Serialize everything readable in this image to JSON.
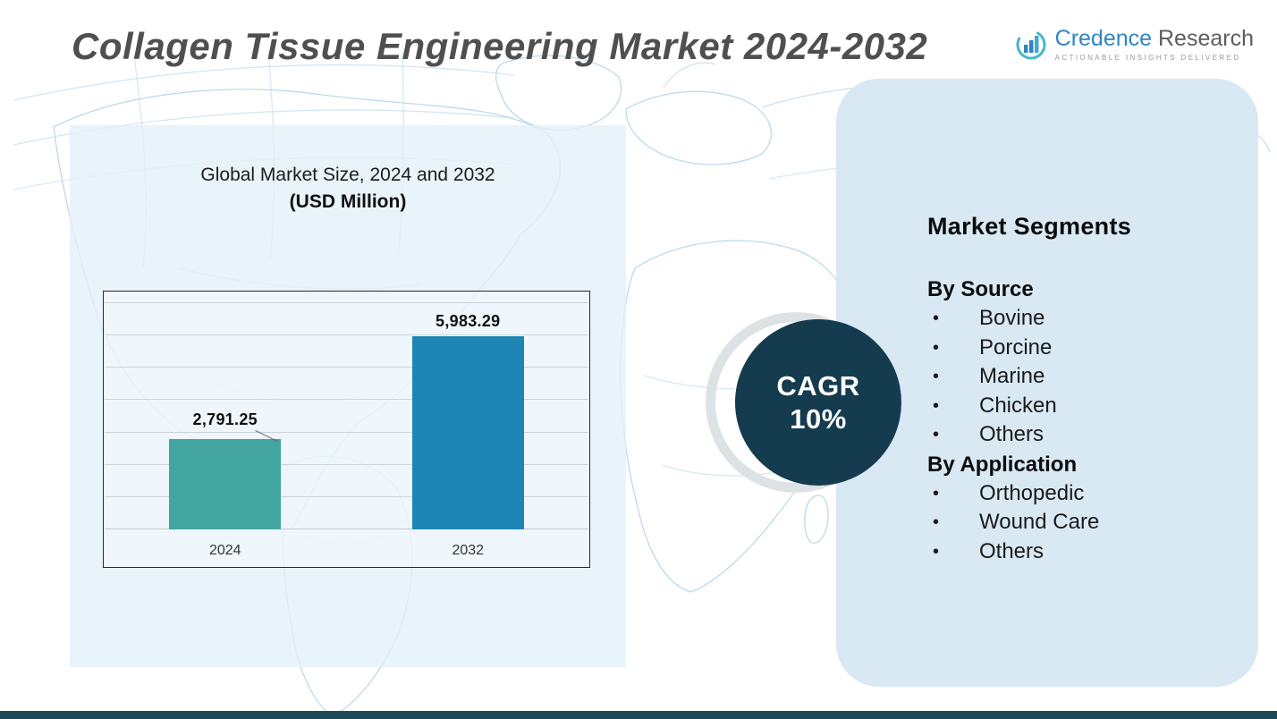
{
  "header": {
    "title": "Collagen Tissue Engineering Market 2024-2032",
    "logo": {
      "brand_primary": "Credence",
      "brand_secondary": "Research",
      "tagline": "ACTIONABLE INSIGHTS DELIVERED"
    }
  },
  "chart_panel": {
    "title": "Global Market Size, 2024 and 2032",
    "subtitle": "(USD Million)"
  },
  "chart_data": {
    "type": "bar",
    "title": "Global Market Size, 2024 and 2032",
    "unit": "USD Million",
    "categories": [
      "2024",
      "2032"
    ],
    "values": [
      2791.25,
      5983.29
    ],
    "value_labels": [
      "2,791.25",
      "5,983.29"
    ],
    "ylim": [
      0,
      7000
    ],
    "gridline_step": 1000,
    "grid": true,
    "legend_position": "none",
    "bar_colors": [
      "#42a5a0",
      "#1e86b5"
    ]
  },
  "cagr_badge": {
    "label": "CAGR",
    "value": "10%"
  },
  "segments_panel": {
    "title": "Market Segments",
    "groups": [
      {
        "heading": "By Source",
        "items": [
          "Bovine",
          "Porcine",
          "Marine",
          "Chicken",
          "Others"
        ]
      },
      {
        "heading": "By Application",
        "items": [
          "Orthopedic",
          "Wound Care",
          "Others"
        ]
      }
    ]
  },
  "colors": {
    "bar_2024": "#42a5a0",
    "bar_2032": "#1e86b5",
    "cagr_circle": "#143c4e",
    "left_panel_bg": "#e3f0f8",
    "right_panel_bg": "#d8e9f4",
    "footer_strip": "#1d4b59",
    "title_text": "#4f4f4f",
    "map_line": "#b5d6e8"
  }
}
